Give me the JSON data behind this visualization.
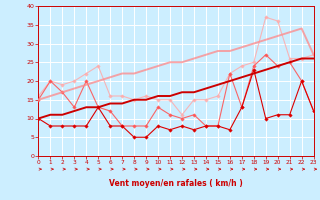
{
  "x": [
    0,
    1,
    2,
    3,
    4,
    5,
    6,
    7,
    8,
    9,
    10,
    11,
    12,
    13,
    14,
    15,
    16,
    17,
    18,
    19,
    20,
    21,
    22,
    23
  ],
  "series": [
    {
      "y": [
        10,
        8,
        8,
        8,
        8,
        13,
        8,
        8,
        5,
        5,
        8,
        7,
        8,
        7,
        8,
        8,
        7,
        13,
        23,
        10,
        11,
        11,
        20,
        12
      ],
      "color": "#dd0000",
      "lw": 0.8,
      "marker": "D",
      "ms": 1.8,
      "alpha": 1.0,
      "zorder": 4
    },
    {
      "y": [
        15,
        20,
        17,
        13,
        20,
        13,
        12,
        8,
        8,
        8,
        13,
        11,
        10,
        11,
        8,
        8,
        22,
        13,
        24,
        27,
        24,
        25,
        20,
        12
      ],
      "color": "#ff5555",
      "lw": 0.8,
      "marker": "D",
      "ms": 1.8,
      "alpha": 0.9,
      "zorder": 3
    },
    {
      "y": [
        16,
        20,
        19,
        20,
        22,
        24,
        16,
        16,
        15,
        16,
        15,
        15,
        11,
        15,
        15,
        16,
        22,
        24,
        25,
        37,
        36,
        26,
        26,
        27
      ],
      "color": "#ffaaaa",
      "lw": 0.8,
      "marker": "D",
      "ms": 1.8,
      "alpha": 0.85,
      "zorder": 2
    },
    {
      "y": [
        10,
        11,
        11,
        12,
        13,
        13,
        14,
        14,
        15,
        15,
        16,
        16,
        17,
        17,
        18,
        19,
        20,
        21,
        22,
        23,
        24,
        25,
        26,
        26
      ],
      "color": "#cc0000",
      "lw": 1.4,
      "marker": null,
      "ms": 0,
      "alpha": 1.0,
      "zorder": 5
    },
    {
      "y": [
        15,
        16,
        17,
        18,
        19,
        20,
        21,
        22,
        22,
        23,
        24,
        25,
        25,
        26,
        27,
        28,
        28,
        29,
        30,
        31,
        32,
        33,
        34,
        27
      ],
      "color": "#ff8888",
      "lw": 1.4,
      "marker": null,
      "ms": 0,
      "alpha": 0.75,
      "zorder": 3
    }
  ],
  "xlim": [
    0,
    23
  ],
  "ylim": [
    0,
    40
  ],
  "yticks": [
    0,
    5,
    10,
    15,
    20,
    25,
    30,
    35,
    40
  ],
  "xticks": [
    0,
    1,
    2,
    3,
    4,
    5,
    6,
    7,
    8,
    9,
    10,
    11,
    12,
    13,
    14,
    15,
    16,
    17,
    18,
    19,
    20,
    21,
    22,
    23
  ],
  "xlabel": "Vent moyen/en rafales ( km/h )",
  "bg_color": "#cceeff",
  "grid_color": "#ffffff",
  "tick_color": "#cc0000",
  "label_color": "#cc0000"
}
